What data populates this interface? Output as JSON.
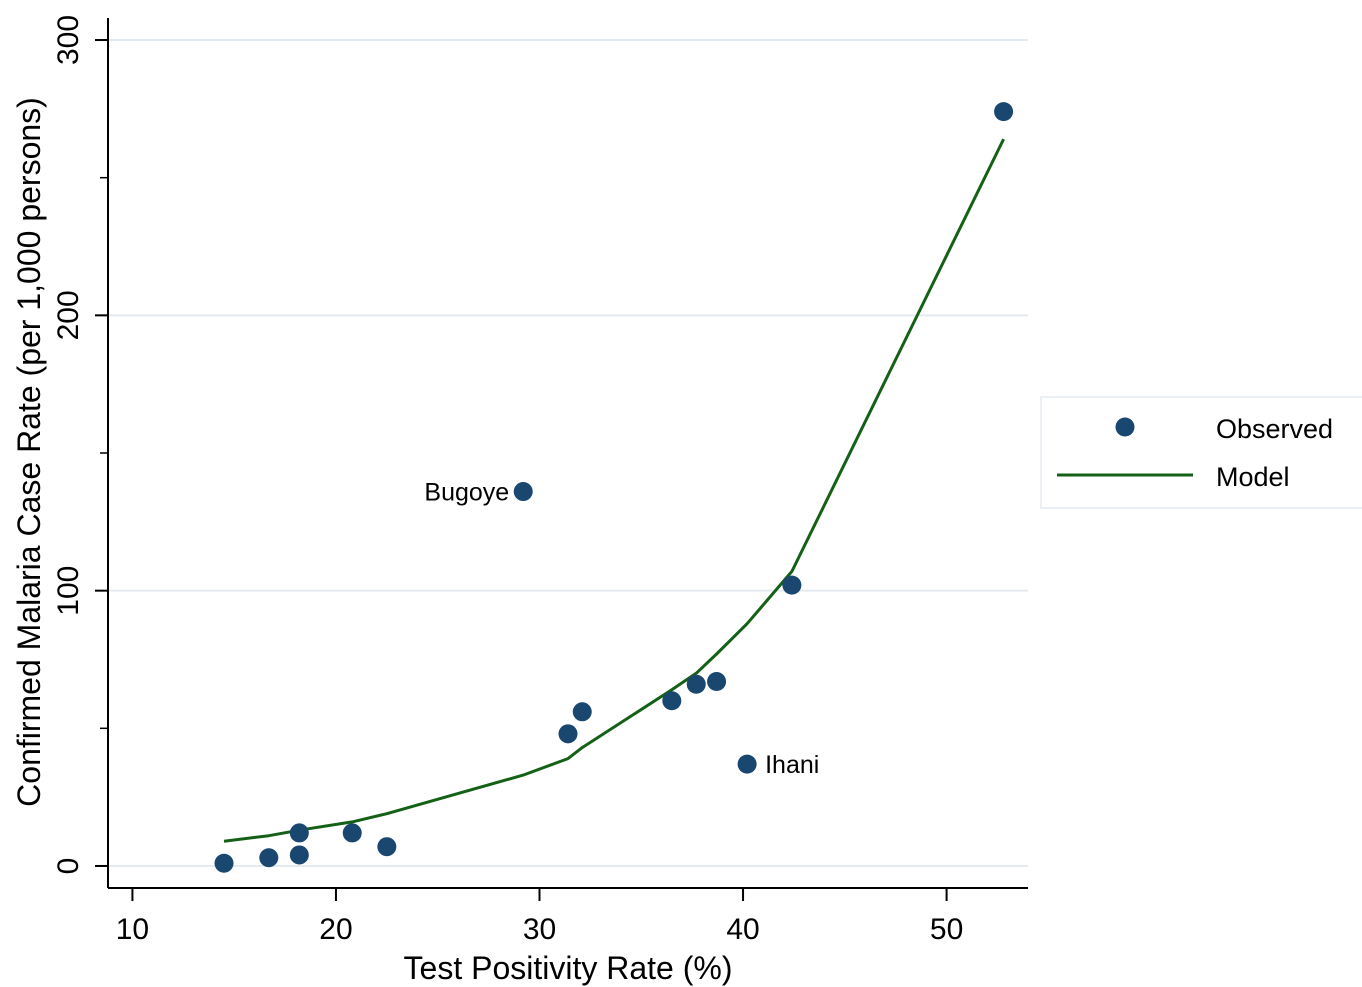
{
  "chart_data": {
    "type": "scatter",
    "title": "",
    "xlabel": "Test Positivity Rate (%)",
    "ylabel": "Confirmed Malaria Case Rate (per 1,000 persons)",
    "xlim": [
      8.8,
      54
    ],
    "ylim": [
      -8,
      308
    ],
    "xticks": [
      10,
      20,
      30,
      40,
      50
    ],
    "yticks": [
      0,
      100,
      200,
      300
    ],
    "yminor": [
      50,
      150,
      250
    ],
    "grid": true,
    "legend_position": "right",
    "colors": {
      "observed": "#1a476f",
      "model": "#156017"
    },
    "series": [
      {
        "name": "Observed",
        "kind": "scatter",
        "points": [
          {
            "x": 14.5,
            "y": 1
          },
          {
            "x": 16.7,
            "y": 3
          },
          {
            "x": 18.2,
            "y": 4
          },
          {
            "x": 18.2,
            "y": 12
          },
          {
            "x": 20.8,
            "y": 12
          },
          {
            "x": 22.5,
            "y": 7
          },
          {
            "x": 29.2,
            "y": 136
          },
          {
            "x": 31.4,
            "y": 48
          },
          {
            "x": 32.1,
            "y": 56
          },
          {
            "x": 36.5,
            "y": 60
          },
          {
            "x": 37.7,
            "y": 66
          },
          {
            "x": 38.7,
            "y": 67
          },
          {
            "x": 40.2,
            "y": 37
          },
          {
            "x": 42.4,
            "y": 102
          },
          {
            "x": 52.8,
            "y": 274
          }
        ]
      },
      {
        "name": "Model",
        "kind": "line",
        "points": [
          {
            "x": 14.5,
            "y": 9
          },
          {
            "x": 16.7,
            "y": 11
          },
          {
            "x": 18.2,
            "y": 13
          },
          {
            "x": 20.8,
            "y": 16
          },
          {
            "x": 22.5,
            "y": 19
          },
          {
            "x": 29.2,
            "y": 33
          },
          {
            "x": 31.4,
            "y": 39
          },
          {
            "x": 32.1,
            "y": 43
          },
          {
            "x": 36.5,
            "y": 64
          },
          {
            "x": 37.7,
            "y": 70
          },
          {
            "x": 38.7,
            "y": 77
          },
          {
            "x": 40.2,
            "y": 88
          },
          {
            "x": 42.4,
            "y": 107
          },
          {
            "x": 52.8,
            "y": 264
          }
        ]
      }
    ],
    "annotations": [
      {
        "text": "Bugoye",
        "x": 29.2,
        "y": 136,
        "side": "left"
      },
      {
        "text": "Ihani",
        "x": 40.2,
        "y": 37,
        "side": "right"
      }
    ]
  }
}
